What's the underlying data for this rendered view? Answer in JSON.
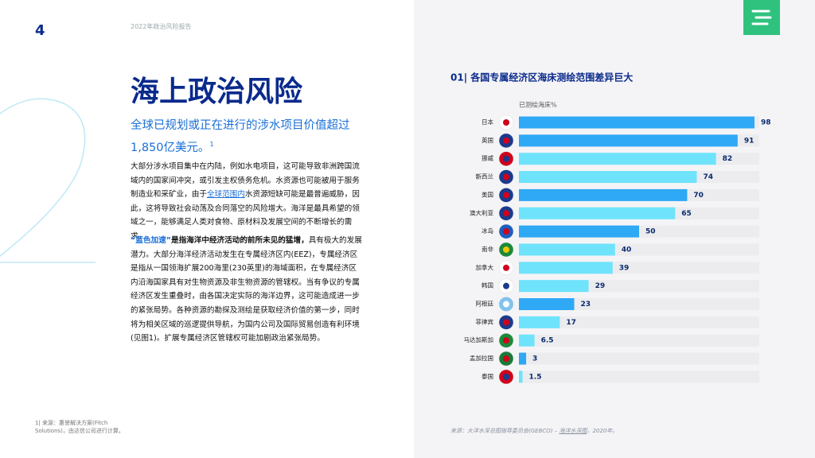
{
  "page": {
    "page_number": "4",
    "header": "2022年政治风险报告",
    "title": "海上政治风险",
    "subtitle": "全球已规划或正在进行的涉水项目价值超过1,850亿美元。",
    "subtitle_note": "1",
    "paragraph1": {
      "before": "大部分涉水项目集中在内陆，例如水电项目，这可能导致非洲跨国流域内的国家间冲突，或引发主权债务危机。水资源也可能被用于服务制造业和采矿业，由于",
      "link": "全球范围内",
      "after": "水资源短缺可能是最普遍威胁，因此，这将导致社会动荡及合同落空的风险增大。海洋是最具希望的领域之一，能够满足人类对食物、原材料及发展空间的不断增长的需求。"
    },
    "paragraph2": {
      "highlight": "“蓝色加速”",
      "bold": "是指海洋中经济活动的前所未见的猛增，",
      "rest": "具有极大的发展潜力。大部分海洋经济活动发生在专属经济区内(EEZ)，专属经济区是指从一国领海扩展200海里(230英里)的海域面积，在专属经济区内沿海国家具有对生物资源及非生物资源的管辖权。当有争议的专属经济区发生重叠时，由各国决定实际的海洋边界，这可能造成进一步的紧张局势。各种资源的勘探及测绘是获取经济价值的第一步，同时将为相关区域的巡逻提供导航，为国内公司及国际贸易创造有利环境(见图1)。扩展专属经济区管辖权可能加剧政治紧张局势。"
    },
    "footnote": "1| 来源：惠誉解决方案(Fitch Solutions)，由达信公司进行计算。",
    "source_label": "来源：",
    "source_text": "大洋水深总图指导委员会(GEBCO) – ",
    "source_link": "海洋水深图",
    "source_year": "，2020年。"
  },
  "chart_data": {
    "type": "bar",
    "orientation": "horizontal",
    "title": "01|  各国专属经济区海床测绘范围差异巨大",
    "value_axis_label": "已测绘海床%",
    "categories": [
      "日本",
      "英国",
      "挪威",
      "新西兰",
      "美国",
      "澳大利亚",
      "冰岛",
      "南非",
      "加拿大",
      "韩国",
      "阿根廷",
      "菲律宾",
      "马达加斯加",
      "孟加拉国",
      "泰国"
    ],
    "values": [
      98,
      91,
      82,
      74,
      70,
      65,
      50,
      40,
      39,
      29,
      23,
      17,
      6.5,
      3,
      1.5
    ],
    "colors": [
      "#2fa8f5",
      "#2fa8f5",
      "#6fe3fb",
      "#6fe3fb",
      "#2fa8f5",
      "#6fe3fb",
      "#2fa8f5",
      "#6fe3fb",
      "#6fe3fb",
      "#6fe3fb",
      "#2fa8f5",
      "#6fe3fb",
      "#6fe3fb",
      "#2fa8f5",
      "#6fe3fb"
    ],
    "xlim": [
      0,
      100
    ]
  }
}
